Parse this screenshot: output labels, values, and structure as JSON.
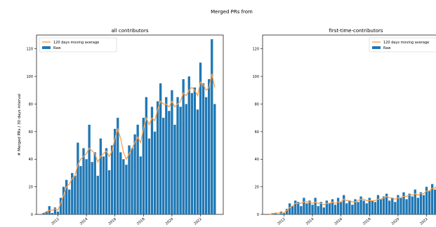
{
  "figure": {
    "suptitle": "Merged PRs from"
  },
  "colors": {
    "raw": "#1f77b4",
    "avg": "#ff9f4a",
    "axis": "#000000",
    "legend_border": "#cccccc"
  },
  "chart_data": [
    {
      "type": "bar",
      "title": "all contributors",
      "xlabel": "",
      "ylabel": "# Merged PRs / 30 days interval",
      "xlim": [
        2010.5,
        2023.6
      ],
      "ylim": [
        0,
        130
      ],
      "yticks": [
        "0",
        "20",
        "40",
        "60",
        "80",
        "100",
        "120"
      ],
      "ytick_values": [
        0,
        20,
        40,
        60,
        80,
        100,
        120
      ],
      "xticks": [
        "2012",
        "2014",
        "2016",
        "2018",
        "2020",
        "2022"
      ],
      "xtick_values": [
        2012,
        2014,
        2016,
        2018,
        2020,
        2022
      ],
      "legend": {
        "placement": "upper-left",
        "entries": [
          "120 days moving average",
          "Raw"
        ]
      },
      "series": [
        {
          "name": "Raw",
          "kind": "bar",
          "x": [
            2011.0,
            2011.2,
            2011.4,
            2011.6,
            2011.8,
            2012.0,
            2012.2,
            2012.4,
            2012.6,
            2012.8,
            2013.0,
            2013.2,
            2013.4,
            2013.6,
            2013.8,
            2014.0,
            2014.2,
            2014.4,
            2014.6,
            2014.8,
            2015.0,
            2015.2,
            2015.4,
            2015.6,
            2015.8,
            2016.0,
            2016.2,
            2016.4,
            2016.6,
            2016.8,
            2017.0,
            2017.2,
            2017.4,
            2017.6,
            2017.8,
            2018.0,
            2018.2,
            2018.4,
            2018.6,
            2018.8,
            2019.0,
            2019.2,
            2019.4,
            2019.6,
            2019.8,
            2020.0,
            2020.2,
            2020.4,
            2020.6,
            2020.8,
            2021.0,
            2021.2,
            2021.4,
            2021.6,
            2021.8,
            2022.0,
            2022.2,
            2022.4,
            2022.6,
            2022.8,
            2023.0
          ],
          "values": [
            1,
            2,
            6,
            1,
            5,
            2,
            12,
            20,
            25,
            18,
            30,
            28,
            52,
            35,
            48,
            40,
            65,
            38,
            45,
            28,
            55,
            42,
            48,
            32,
            50,
            62,
            70,
            45,
            40,
            36,
            50,
            48,
            58,
            65,
            42,
            70,
            85,
            55,
            78,
            60,
            82,
            95,
            70,
            85,
            75,
            90,
            65,
            85,
            78,
            98,
            80,
            100,
            88,
            92,
            76,
            110,
            95,
            85,
            98,
            127,
            80
          ]
        },
        {
          "name": "120 days moving average",
          "kind": "line",
          "x": [
            2011.0,
            2011.2,
            2011.4,
            2011.6,
            2011.8,
            2012.0,
            2012.2,
            2012.4,
            2012.6,
            2012.8,
            2013.0,
            2013.2,
            2013.4,
            2013.6,
            2013.8,
            2014.0,
            2014.2,
            2014.4,
            2014.6,
            2014.8,
            2015.0,
            2015.2,
            2015.4,
            2015.6,
            2015.8,
            2016.0,
            2016.2,
            2016.4,
            2016.6,
            2016.8,
            2017.0,
            2017.2,
            2017.4,
            2017.6,
            2017.8,
            2018.0,
            2018.2,
            2018.4,
            2018.6,
            2018.8,
            2019.0,
            2019.2,
            2019.4,
            2019.6,
            2019.8,
            2020.0,
            2020.2,
            2020.4,
            2020.6,
            2020.8,
            2021.0,
            2021.2,
            2021.4,
            2021.6,
            2021.8,
            2022.0,
            2022.2,
            2022.4,
            2022.6,
            2022.8,
            2023.0
          ],
          "values": [
            1,
            2,
            3,
            3,
            4,
            3,
            8,
            14,
            20,
            22,
            26,
            28,
            36,
            40,
            42,
            44,
            48,
            46,
            44,
            38,
            42,
            44,
            46,
            42,
            46,
            55,
            62,
            55,
            45,
            40,
            44,
            48,
            52,
            56,
            52,
            62,
            70,
            65,
            70,
            68,
            76,
            82,
            80,
            80,
            78,
            82,
            78,
            80,
            82,
            88,
            86,
            90,
            92,
            90,
            86,
            96,
            94,
            90,
            92,
            102,
            92
          ]
        }
      ]
    },
    {
      "type": "bar",
      "title": "first-time-contributors",
      "xlabel": "",
      "ylabel": "",
      "xlim": [
        2010.5,
        2023.6
      ],
      "ylim": [
        0,
        130
      ],
      "yticks": [
        "0",
        "20",
        "40",
        "60",
        "80",
        "100",
        "120"
      ],
      "ytick_values": [
        0,
        20,
        40,
        60,
        80,
        100,
        120
      ],
      "xticks": [
        "2012",
        "2014",
        "2016",
        "2018",
        "2020",
        "2022"
      ],
      "xtick_values": [
        2012,
        2014,
        2016,
        2018,
        2020,
        2022
      ],
      "legend": {
        "placement": "upper-right",
        "entries": [
          "120 days moving average",
          "Raw"
        ]
      },
      "series": [
        {
          "name": "Raw",
          "kind": "bar",
          "x": [
            2011.0,
            2011.2,
            2011.4,
            2011.6,
            2011.8,
            2012.0,
            2012.2,
            2012.4,
            2012.6,
            2012.8,
            2013.0,
            2013.2,
            2013.4,
            2013.6,
            2013.8,
            2014.0,
            2014.2,
            2014.4,
            2014.6,
            2014.8,
            2015.0,
            2015.2,
            2015.4,
            2015.6,
            2015.8,
            2016.0,
            2016.2,
            2016.4,
            2016.6,
            2016.8,
            2017.0,
            2017.2,
            2017.4,
            2017.6,
            2017.8,
            2018.0,
            2018.2,
            2018.4,
            2018.6,
            2018.8,
            2019.0,
            2019.2,
            2019.4,
            2019.6,
            2019.8,
            2020.0,
            2020.2,
            2020.4,
            2020.6,
            2020.8,
            2021.0,
            2021.2,
            2021.4,
            2021.6,
            2021.8,
            2022.0,
            2022.2,
            2022.4,
            2022.6,
            2022.8,
            2023.0
          ],
          "values": [
            0,
            1,
            1,
            0,
            2,
            1,
            4,
            8,
            6,
            10,
            9,
            6,
            12,
            8,
            10,
            7,
            12,
            6,
            9,
            5,
            10,
            8,
            11,
            7,
            12,
            9,
            14,
            8,
            10,
            7,
            11,
            9,
            13,
            10,
            8,
            12,
            10,
            9,
            14,
            11,
            13,
            15,
            10,
            12,
            9,
            14,
            12,
            16,
            11,
            15,
            13,
            18,
            12,
            16,
            14,
            20,
            17,
            22,
            18,
            30,
            22
          ]
        },
        {
          "name": "120 days moving average",
          "kind": "line",
          "x": [
            2011.0,
            2011.2,
            2011.4,
            2011.6,
            2011.8,
            2012.0,
            2012.2,
            2012.4,
            2012.6,
            2012.8,
            2013.0,
            2013.2,
            2013.4,
            2013.6,
            2013.8,
            2014.0,
            2014.2,
            2014.4,
            2014.6,
            2014.8,
            2015.0,
            2015.2,
            2015.4,
            2015.6,
            2015.8,
            2016.0,
            2016.2,
            2016.4,
            2016.6,
            2016.8,
            2017.0,
            2017.2,
            2017.4,
            2017.6,
            2017.8,
            2018.0,
            2018.2,
            2018.4,
            2018.6,
            2018.8,
            2019.0,
            2019.2,
            2019.4,
            2019.6,
            2019.8,
            2020.0,
            2020.2,
            2020.4,
            2020.6,
            2020.8,
            2021.0,
            2021.2,
            2021.4,
            2021.6,
            2021.8,
            2022.0,
            2022.2,
            2022.4,
            2022.6,
            2022.8,
            2023.0
          ],
          "values": [
            0,
            0.5,
            1,
            1,
            1,
            1,
            3,
            5,
            6,
            8,
            8,
            8,
            9,
            9,
            9,
            8,
            9,
            8,
            8,
            7,
            8,
            8,
            9,
            8,
            9,
            9,
            11,
            10,
            10,
            9,
            9,
            10,
            11,
            11,
            10,
            10,
            10,
            10,
            11,
            11,
            12,
            13,
            12,
            12,
            11,
            12,
            12,
            13,
            13,
            14,
            14,
            15,
            14,
            15,
            15,
            17,
            17,
            19,
            19,
            22,
            21
          ]
        }
      ]
    }
  ]
}
